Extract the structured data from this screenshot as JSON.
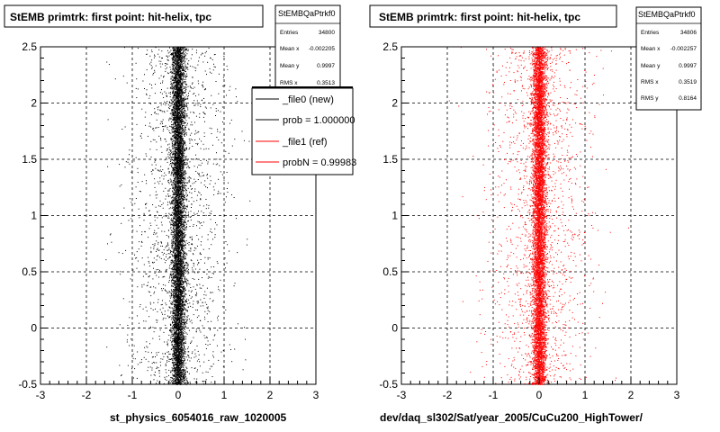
{
  "panels": [
    {
      "title": "StEMB primtrk: first point: hit-helix, tpc",
      "xlabel": "st_physics_6054016_raw_1020005",
      "color": "#000000",
      "stats": {
        "name": "StEMBQaPtrkf0",
        "rows": [
          {
            "label": "Entries",
            "value": "34800"
          },
          {
            "label": "Mean x",
            "value": "-0.002205"
          },
          {
            "label": "Mean y",
            "value": "0.9997"
          },
          {
            "label": "RMS x",
            "value": "0.3513"
          }
        ]
      }
    },
    {
      "title": "StEMB primtrk: first point: hit-helix, tpc",
      "xlabel": "dev/daq_sl302/Sat/year_2005/CuCu200_HighTower/",
      "color": "#ff0000",
      "stats": {
        "name": "StEMBQaPtrkf0",
        "rows": [
          {
            "label": "Entries",
            "value": "34806"
          },
          {
            "label": "Mean x",
            "value": "-0.002257"
          },
          {
            "label": "Mean y",
            "value": "0.9997"
          },
          {
            "label": "RMS x",
            "value": "0.3519"
          },
          {
            "label": "RMS y",
            "value": "0.8164"
          }
        ]
      }
    }
  ],
  "legend": {
    "entries": [
      {
        "label": "_file0 (new)",
        "color": "#000000"
      },
      {
        "label": "prob = 1.000000",
        "color": "#000000"
      },
      {
        "label": "_file1 (ref)",
        "color": "#ff0000"
      },
      {
        "label": "probN = 0.99983",
        "color": "#ff0000"
      }
    ]
  },
  "chart_data": [
    {
      "type": "scatter",
      "title": "StEMB primtrk: first point: hit-helix, tpc",
      "xlabel": "st_physics_6054016_raw_1020005",
      "ylabel": "",
      "xlim": [
        -3,
        3
      ],
      "ylim": [
        -0.5,
        2.5
      ],
      "xticks": [
        "-3",
        "-2",
        "-1",
        "0",
        "1",
        "2",
        "3"
      ],
      "yticks": [
        "-0.5",
        "0",
        "0.5",
        "1",
        "1.5",
        "2",
        "2.5"
      ],
      "grid": true,
      "series": [
        {
          "name": "_file0 (new)",
          "color": "#000000",
          "entries": 34800,
          "mean_x": -0.002205,
          "mean_y": 0.9997,
          "rms_x": 0.3513
        }
      ]
    },
    {
      "type": "scatter",
      "title": "StEMB primtrk: first point: hit-helix, tpc",
      "xlabel": "dev/daq_sl302/Sat/year_2005/CuCu200_HighTower/",
      "ylabel": "",
      "xlim": [
        -3,
        3
      ],
      "ylim": [
        -0.5,
        2.5
      ],
      "xticks": [
        "-3",
        "-2",
        "-1",
        "0",
        "1",
        "2",
        "3"
      ],
      "yticks": [
        "-0.5",
        "0",
        "0.5",
        "1",
        "1.5",
        "2",
        "2.5"
      ],
      "grid": true,
      "series": [
        {
          "name": "_file1 (ref)",
          "color": "#ff0000",
          "entries": 34806,
          "mean_x": -0.002257,
          "mean_y": 0.9997,
          "rms_x": 0.3519,
          "rms_y": 0.8164
        }
      ]
    }
  ]
}
